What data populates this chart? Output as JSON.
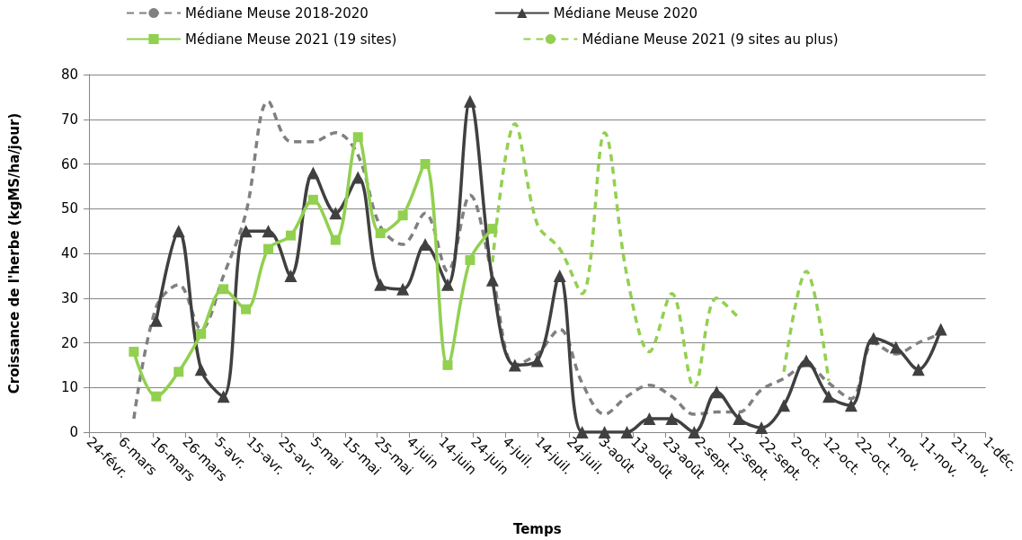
{
  "chart_data": {
    "type": "line",
    "xlabel": "Temps",
    "ylabel": "Croissance de l'herbe (kgMS/ha/jour)",
    "xlim": [
      "--02-24",
      "--12-01"
    ],
    "xticks": [
      {
        "value": "--02-24",
        "label": "24-févr."
      },
      {
        "value": "--03-06",
        "label": "6-mars"
      },
      {
        "value": "--03-16",
        "label": "16-mars"
      },
      {
        "value": "--03-26",
        "label": "26-mars"
      },
      {
        "value": "--04-05",
        "label": "5-avr."
      },
      {
        "value": "--04-15",
        "label": "15-avr."
      },
      {
        "value": "--04-25",
        "label": "25-avr."
      },
      {
        "value": "--05-05",
        "label": "5-mai"
      },
      {
        "value": "--05-15",
        "label": "15-mai"
      },
      {
        "value": "--05-25",
        "label": "25-mai"
      },
      {
        "value": "--06-04",
        "label": "4-juin"
      },
      {
        "value": "--06-14",
        "label": "14-juin"
      },
      {
        "value": "--06-24",
        "label": "24-juin"
      },
      {
        "value": "--07-04",
        "label": "4-juil."
      },
      {
        "value": "--07-14",
        "label": "14-juil."
      },
      {
        "value": "--07-24",
        "label": "24-juil."
      },
      {
        "value": "--08-03",
        "label": "3-août"
      },
      {
        "value": "--08-13",
        "label": "13-août"
      },
      {
        "value": "--08-23",
        "label": "23-août"
      },
      {
        "value": "--09-02",
        "label": "2-sept."
      },
      {
        "value": "--09-12",
        "label": "12-sept."
      },
      {
        "value": "--09-22",
        "label": "22-sept."
      },
      {
        "value": "--10-02",
        "label": "2-oct."
      },
      {
        "value": "--10-12",
        "label": "12-oct."
      },
      {
        "value": "--10-22",
        "label": "22-oct."
      },
      {
        "value": "--11-01",
        "label": "1-nov."
      },
      {
        "value": "--11-11",
        "label": "11-nov."
      },
      {
        "value": "--11-21",
        "label": "21-nov."
      },
      {
        "value": "--12-01",
        "label": "1-déc."
      }
    ],
    "ylim": [
      0,
      80
    ],
    "yticks": [
      0,
      10,
      20,
      30,
      40,
      50,
      60,
      70,
      80
    ],
    "grid": "y",
    "legend": "top",
    "series": [
      {
        "name": "Médiane Meuse 2018-2020",
        "color": "#808080",
        "marker": "none",
        "line_style": "dashed",
        "x": [
          "--03-10",
          "--03-17",
          "--03-24",
          "--03-31",
          "--04-07",
          "--04-14",
          "--04-21",
          "--04-28",
          "--05-05",
          "--05-12",
          "--05-19",
          "--05-26",
          "--06-02",
          "--06-09",
          "--06-16",
          "--06-23",
          "--06-30",
          "--07-07",
          "--07-14",
          "--07-21",
          "--07-28",
          "--08-04",
          "--08-11",
          "--08-18",
          "--08-25",
          "--09-01",
          "--09-08",
          "--09-15",
          "--09-22",
          "--09-29",
          "--10-06",
          "--10-13",
          "--10-20",
          "--10-27",
          "--11-03",
          "--11-10",
          "--11-17"
        ],
        "values": [
          3,
          28,
          33,
          23,
          35,
          49,
          74,
          65,
          65,
          67,
          62,
          46,
          42,
          49,
          36,
          53,
          35,
          15,
          17.5,
          23,
          11,
          4,
          8,
          10.5,
          8,
          4,
          4.5,
          4.5,
          9.5,
          12,
          15,
          11,
          7.5,
          20,
          17.5,
          20,
          22
        ]
      },
      {
        "name": "Médiane Meuse 2020",
        "color": "#404040",
        "marker": "triangle",
        "line_style": "solid",
        "x": [
          "--03-17",
          "--03-24",
          "--03-31",
          "--04-07",
          "--04-14",
          "--04-21",
          "--04-28",
          "--05-05",
          "--05-12",
          "--05-19",
          "--05-26",
          "--06-02",
          "--06-09",
          "--06-16",
          "--06-23",
          "--06-30",
          "--07-07",
          "--07-14",
          "--07-21",
          "--07-28",
          "--08-04",
          "--08-11",
          "--08-18",
          "--08-25",
          "--09-01",
          "--09-08",
          "--09-15",
          "--09-22",
          "--09-29",
          "--10-06",
          "--10-13",
          "--10-20",
          "--10-27",
          "--11-03",
          "--11-10",
          "--11-17"
        ],
        "values": [
          25,
          45,
          14,
          8,
          45,
          45,
          35,
          58,
          49,
          57,
          33,
          32,
          42,
          33,
          74,
          34,
          15,
          16,
          35,
          0,
          0,
          0,
          3,
          3,
          0,
          9,
          3,
          1,
          6,
          16,
          8,
          6,
          21,
          19,
          14,
          23
        ]
      },
      {
        "name": "Médiane Meuse 2021 (19 sites)",
        "color": "#92d050",
        "marker": "square",
        "line_style": "solid",
        "x": [
          "--03-10",
          "--03-17",
          "--03-24",
          "--03-31",
          "--04-07",
          "--04-14",
          "--04-21",
          "--04-28",
          "--05-05",
          "--05-12",
          "--05-19",
          "--05-26",
          "--06-02",
          "--06-09",
          "--06-16",
          "--06-23",
          "--06-30"
        ],
        "values": [
          18,
          8,
          13.5,
          22,
          32,
          27.5,
          41,
          44,
          52,
          43,
          66,
          44.5,
          48.5,
          60,
          15,
          38.5,
          45.5
        ]
      },
      {
        "name": "Médiane Meuse 2021 (9 sites au plus)",
        "color": "#92d050",
        "marker": "none",
        "line_style": "dashed",
        "x": [
          "--06-30",
          "--07-07",
          "--07-14",
          "--07-21",
          "--07-28",
          "--08-04",
          "--08-11",
          "--08-18",
          "--08-25",
          "--09-01",
          "--09-08",
          "--09-15",
          "--09-22",
          "--09-29",
          "--10-06",
          "--10-13"
        ],
        "values": [
          38,
          69,
          46.5,
          41,
          31,
          67,
          35,
          18,
          31,
          10,
          30,
          25.5,
          null,
          13.5,
          36,
          11.5
        ]
      }
    ]
  }
}
